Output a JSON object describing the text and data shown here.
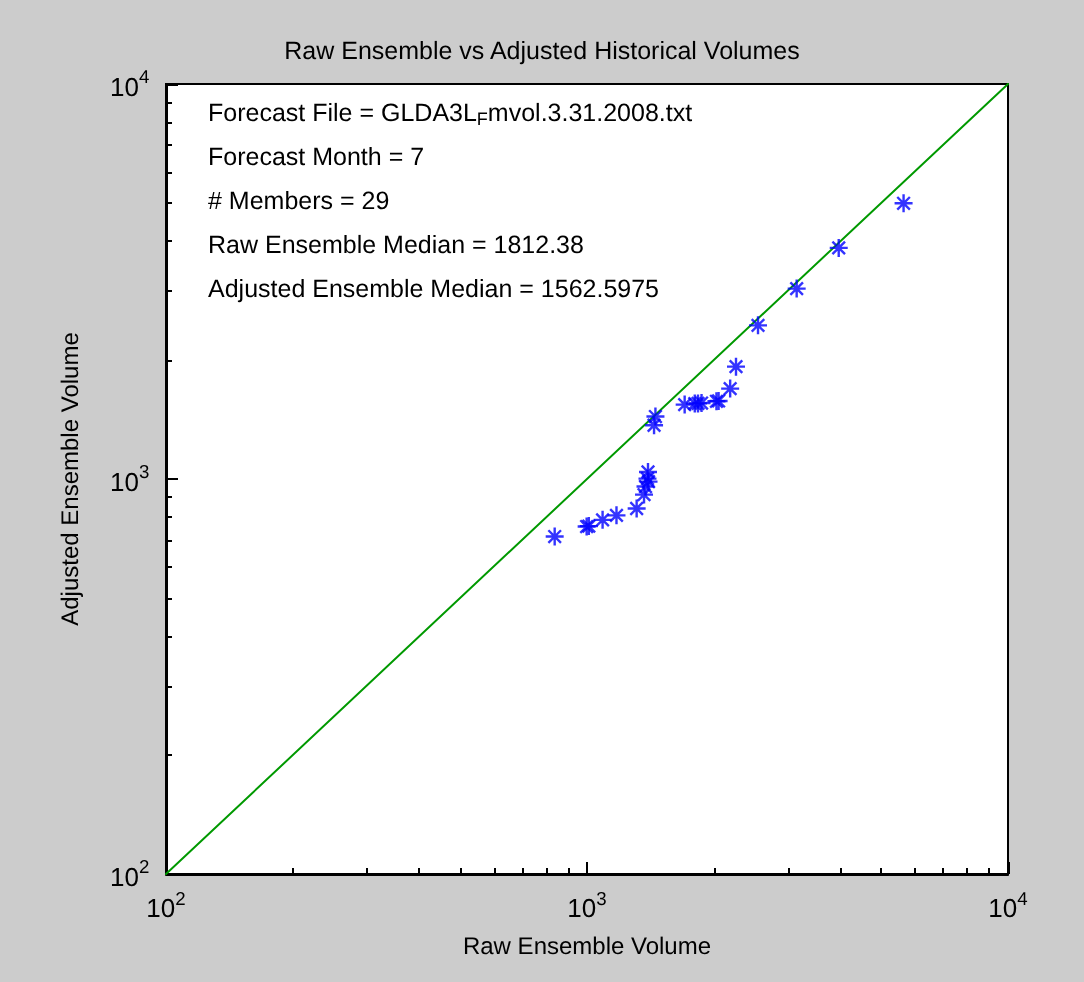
{
  "chart_data": {
    "type": "scatter",
    "title": "Raw Ensemble vs Adjusted Historical Volumes",
    "xlabel": "Raw Ensemble Volume",
    "ylabel": "Adjusted Ensemble Volume",
    "annotations": [
      "Forecast File = GLDA3L$_{F}$mvol.3.31.2008.txt",
      "Forecast Month = 7",
      "# Members = 29",
      "Raw Ensemble Median = 1812.38",
      "Adjusted Ensemble Median = 1562.5975"
    ],
    "log": "xy",
    "grid": false,
    "xlim": [
      100,
      10000
    ],
    "ylim": [
      100,
      10000
    ],
    "xticks": [
      {
        "value": 100,
        "label": "10$^{2}$"
      },
      {
        "value": 1000,
        "label": "10$^{3}$"
      },
      {
        "value": 10000,
        "label": "10$^{4}$"
      }
    ],
    "yticks": [
      {
        "value": 100,
        "label": "10$^{2}$"
      },
      {
        "value": 1000,
        "label": "10$^{3}$"
      },
      {
        "value": 10000,
        "label": "10$^{4}$"
      }
    ],
    "series": [
      {
        "type": "scatter",
        "color": "#0000ff",
        "marker": "cross",
        "x": [
          838,
          998,
          1010,
          1089,
          1175,
          1312,
          1366,
          1377,
          1392,
          1396,
          1400,
          1443,
          1454,
          1706,
          1803,
          1835,
          1871,
          1920,
          1938,
          1980,
          2009,
          2030,
          2054,
          2188,
          2259,
          2548,
          3148,
          3962,
          5649
        ],
        "values": [
          715,
          758,
          760,
          788,
          809,
          842,
          913,
          957,
          1002,
          1042,
          985,
          1368,
          1439,
          1543,
          1552,
          1554,
          1557,
          null,
          null,
          null,
          null,
          1573,
          1576,
          1694,
          1925,
          2449,
          3034,
          3846,
          4988
        ]
      },
      {
        "type": "line",
        "color": "#009900",
        "marker": "none",
        "line_style": "solid",
        "x": [
          100,
          10000
        ],
        "values": [
          100,
          10000
        ]
      }
    ]
  }
}
